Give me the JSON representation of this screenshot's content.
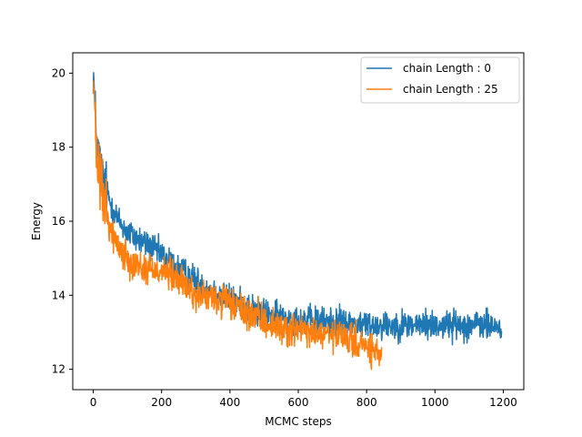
{
  "chart_data": {
    "type": "line",
    "title": "",
    "xlabel": "MCMC steps",
    "ylabel": "Energy",
    "xlim": [
      -60,
      1260
    ],
    "ylim": [
      11.45,
      20.55
    ],
    "xticks": [
      0,
      200,
      400,
      600,
      800,
      1000,
      1200
    ],
    "yticks": [
      12,
      14,
      16,
      18,
      20
    ],
    "grid": false,
    "legend_position": "top-right",
    "series": [
      {
        "name": "chain Length : 0",
        "color": "#1f77b4",
        "points": [
          [
            0,
            20.1
          ],
          [
            10,
            18.1
          ],
          [
            25,
            17.3
          ],
          [
            50,
            16.5
          ],
          [
            75,
            16.0
          ],
          [
            100,
            15.7
          ],
          [
            150,
            15.4
          ],
          [
            200,
            15.1
          ],
          [
            250,
            14.7
          ],
          [
            300,
            14.4
          ],
          [
            350,
            14.1
          ],
          [
            400,
            13.9
          ],
          [
            450,
            13.7
          ],
          [
            500,
            13.5
          ],
          [
            550,
            13.4
          ],
          [
            600,
            13.35
          ],
          [
            650,
            13.3
          ],
          [
            700,
            13.3
          ],
          [
            750,
            13.25
          ],
          [
            800,
            13.2
          ],
          [
            850,
            13.2
          ],
          [
            900,
            13.2
          ],
          [
            950,
            13.2
          ],
          [
            1000,
            13.2
          ],
          [
            1050,
            13.2
          ],
          [
            1100,
            13.2
          ],
          [
            1150,
            13.2
          ],
          [
            1195,
            13.1
          ]
        ],
        "noise": 0.2
      },
      {
        "name": "chain Length : 25",
        "color": "#ff7f0e",
        "points": [
          [
            0,
            19.9
          ],
          [
            10,
            17.6
          ],
          [
            25,
            16.8
          ],
          [
            50,
            15.8
          ],
          [
            75,
            15.3
          ],
          [
            100,
            15.0
          ],
          [
            150,
            14.7
          ],
          [
            200,
            14.7
          ],
          [
            250,
            14.4
          ],
          [
            300,
            14.0
          ],
          [
            350,
            13.9
          ],
          [
            400,
            13.8
          ],
          [
            450,
            13.5
          ],
          [
            500,
            13.3
          ],
          [
            550,
            13.1
          ],
          [
            600,
            13.05
          ],
          [
            650,
            12.95
          ],
          [
            700,
            12.9
          ],
          [
            750,
            12.8
          ],
          [
            800,
            12.6
          ],
          [
            830,
            12.4
          ],
          [
            845,
            12.5
          ]
        ],
        "noise": 0.22
      }
    ]
  }
}
